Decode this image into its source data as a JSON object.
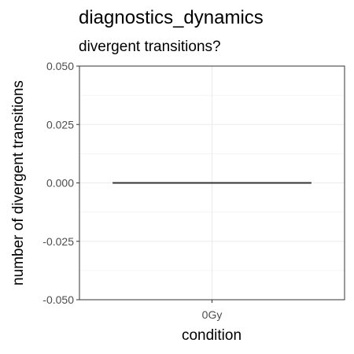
{
  "chart_data": {
    "type": "box",
    "title": "diagnostics_dynamics",
    "subtitle": "divergent transitions?",
    "xlabel": "condition",
    "ylabel": "number of divergent transitions",
    "categories": [
      "0Gy"
    ],
    "values": [
      0
    ],
    "ylim": [
      -0.05,
      0.05
    ],
    "yticks": [
      "-0.050",
      "-0.025",
      "0.000",
      "0.025",
      "0.050"
    ],
    "ytick_values": [
      -0.05,
      -0.025,
      0,
      0.025,
      0.05
    ],
    "grid": true,
    "theme": "ggplot2 bw",
    "colors": {
      "panel_border": "#333333",
      "grid": "#ebebeb",
      "series": "#333333",
      "tick_label": "#4d4d4d"
    }
  }
}
